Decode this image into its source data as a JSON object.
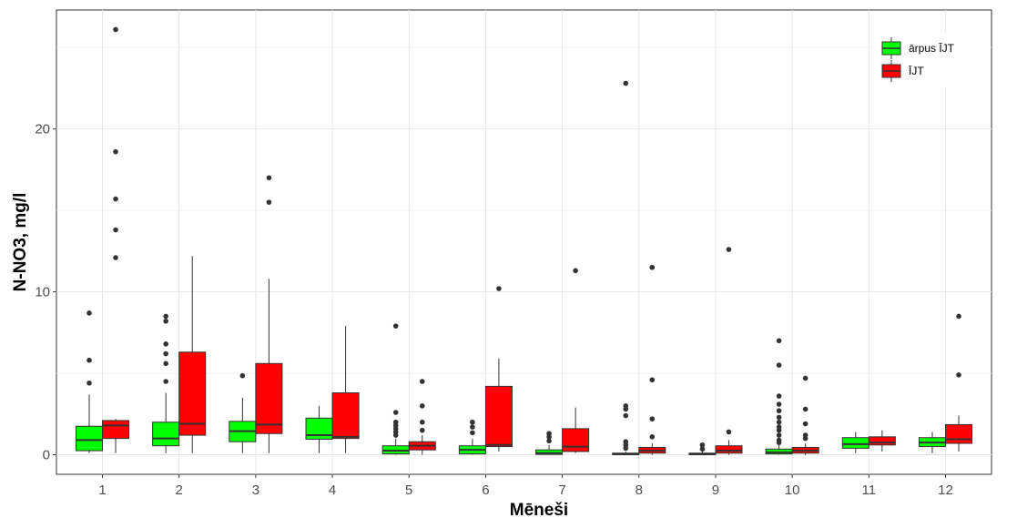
{
  "chart_data": {
    "type": "boxplot",
    "xlabel": "Mēneši",
    "ylabel": "N-NO3, mg/l",
    "categories": [
      "1",
      "2",
      "3",
      "4",
      "5",
      "6",
      "7",
      "8",
      "9",
      "10",
      "11",
      "12"
    ],
    "ylim": [
      -1.2,
      27.3
    ],
    "y_ticks": [
      0,
      10,
      20
    ],
    "grid": true,
    "legend": {
      "position": "top-right"
    },
    "series": [
      {
        "name": "ārpus ĪJT",
        "color": "#00ff00",
        "boxes": [
          {
            "min": 0.1,
            "q1": 0.25,
            "median": 0.9,
            "q3": 1.75,
            "max": 3.7,
            "outliers": [
              4.4,
              5.8,
              8.7
            ]
          },
          {
            "min": 0.1,
            "q1": 0.55,
            "median": 1.0,
            "q3": 2.0,
            "max": 3.8,
            "outliers": [
              4.5,
              5.6,
              6.2,
              6.8,
              8.2,
              8.5
            ]
          },
          {
            "min": 0.1,
            "q1": 0.8,
            "median": 1.45,
            "q3": 2.05,
            "max": 3.5,
            "outliers": [
              4.85
            ]
          },
          {
            "min": 0.1,
            "q1": 0.95,
            "median": 1.2,
            "q3": 2.25,
            "max": 3.0,
            "outliers": []
          },
          {
            "min": 0.0,
            "q1": 0.05,
            "median": 0.25,
            "q3": 0.55,
            "max": 1.0,
            "outliers": [
              1.2,
              1.4,
              1.6,
              1.8,
              2.0,
              2.6,
              7.9
            ]
          },
          {
            "min": 0.0,
            "q1": 0.05,
            "median": 0.3,
            "q3": 0.55,
            "max": 1.0,
            "outliers": [
              1.35,
              1.7,
              2.0
            ]
          },
          {
            "min": 0.0,
            "q1": 0.02,
            "median": 0.1,
            "q3": 0.3,
            "max": 0.6,
            "outliers": [
              0.85,
              1.1,
              1.3
            ]
          },
          {
            "min": 0.0,
            "q1": 0.0,
            "median": 0.05,
            "q3": 0.1,
            "max": 0.2,
            "outliers": [
              0.4,
              0.6,
              0.8,
              2.4,
              2.8,
              3.0,
              22.8
            ]
          },
          {
            "min": 0.0,
            "q1": 0.0,
            "median": 0.05,
            "q3": 0.1,
            "max": 0.2,
            "outliers": [
              0.35,
              0.6
            ]
          },
          {
            "min": 0.0,
            "q1": 0.05,
            "median": 0.15,
            "q3": 0.35,
            "max": 0.6,
            "outliers": [
              0.75,
              0.9,
              1.2,
              1.5,
              1.7,
              2.0,
              2.3,
              2.7,
              3.1,
              3.6,
              5.5,
              7.0
            ]
          },
          {
            "min": 0.1,
            "q1": 0.4,
            "median": 0.65,
            "q3": 1.05,
            "max": 1.4,
            "outliers": []
          },
          {
            "min": 0.1,
            "q1": 0.5,
            "median": 0.75,
            "q3": 1.05,
            "max": 1.4,
            "outliers": []
          }
        ]
      },
      {
        "name": "ĪJT",
        "color": "#ff0000",
        "boxes": [
          {
            "min": 0.1,
            "q1": 1.0,
            "median": 1.8,
            "q3": 2.1,
            "max": 2.2,
            "outliers": [
              12.1,
              13.8,
              15.7,
              18.6,
              26.1
            ]
          },
          {
            "min": 0.1,
            "q1": 1.2,
            "median": 1.9,
            "q3": 6.3,
            "max": 12.2,
            "outliers": []
          },
          {
            "min": 0.1,
            "q1": 1.3,
            "median": 1.85,
            "q3": 5.6,
            "max": 10.8,
            "outliers": [
              15.5,
              17.0
            ]
          },
          {
            "min": 0.1,
            "q1": 1.0,
            "median": 1.1,
            "q3": 3.8,
            "max": 7.9,
            "outliers": []
          },
          {
            "min": 0.0,
            "q1": 0.3,
            "median": 0.55,
            "q3": 0.8,
            "max": 1.2,
            "outliers": [
              1.5,
              2.0,
              3.0,
              4.5
            ]
          },
          {
            "min": 0.2,
            "q1": 0.5,
            "median": 0.6,
            "q3": 4.2,
            "max": 5.9,
            "outliers": [
              10.2
            ]
          },
          {
            "min": 0.1,
            "q1": 0.2,
            "median": 0.5,
            "q3": 1.6,
            "max": 2.9,
            "outliers": [
              11.3
            ]
          },
          {
            "min": 0.0,
            "q1": 0.1,
            "median": 0.25,
            "q3": 0.45,
            "max": 0.7,
            "outliers": [
              1.1,
              2.2,
              4.6,
              11.5
            ]
          },
          {
            "min": 0.0,
            "q1": 0.1,
            "median": 0.25,
            "q3": 0.55,
            "max": 0.9,
            "outliers": [
              1.4,
              12.6
            ]
          },
          {
            "min": 0.0,
            "q1": 0.1,
            "median": 0.25,
            "q3": 0.45,
            "max": 0.7,
            "outliers": [
              1.0,
              1.2,
              1.9,
              2.8,
              4.7
            ]
          },
          {
            "min": 0.2,
            "q1": 0.6,
            "median": 0.75,
            "q3": 1.1,
            "max": 1.5,
            "outliers": []
          },
          {
            "min": 0.2,
            "q1": 0.7,
            "median": 0.95,
            "q3": 1.85,
            "max": 2.4,
            "outliers": [
              4.9,
              8.5
            ]
          }
        ]
      }
    ]
  }
}
